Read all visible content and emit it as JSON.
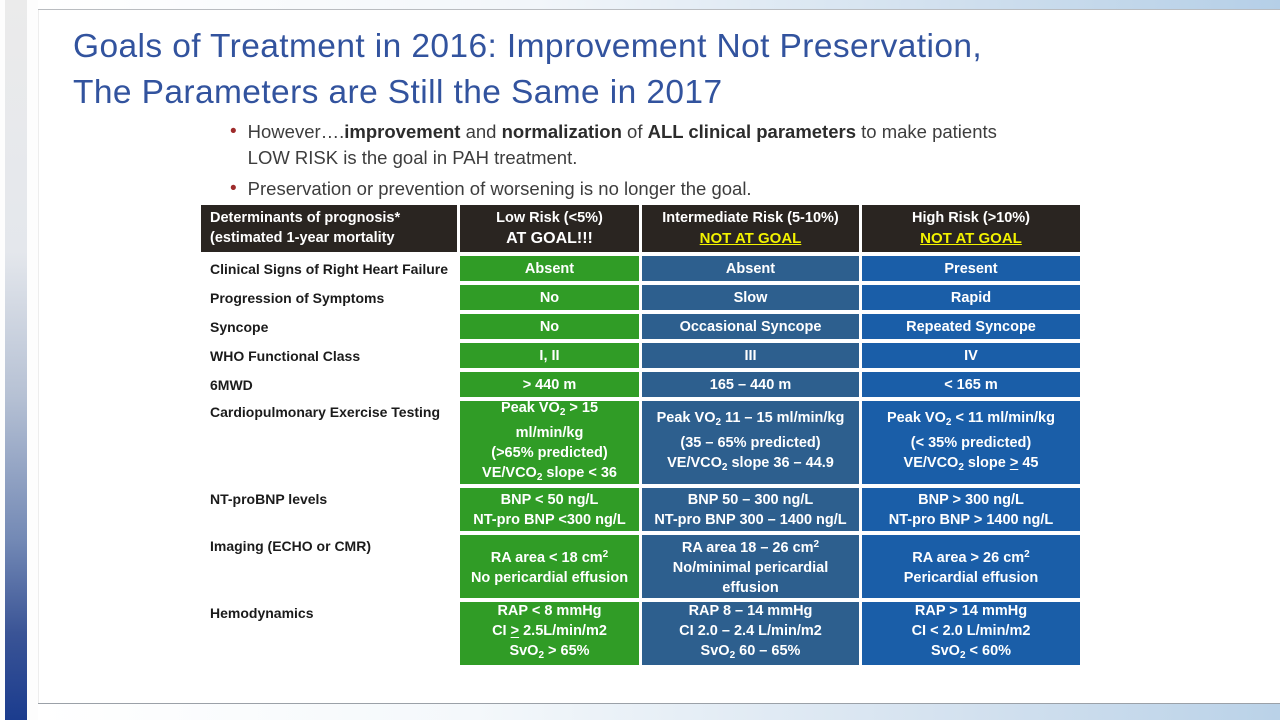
{
  "slide": {
    "title_line1": "Goals of Treatment in 2016: Improvement Not Preservation,",
    "title_line2": "The Parameters are Still the Same in 2017",
    "bullets": [
      {
        "segments": [
          {
            "t": "However…."
          },
          {
            "t": "improvement",
            "b": true
          },
          {
            "t": " and "
          },
          {
            "t": "normalization",
            "b": true
          },
          {
            "t": " of "
          },
          {
            "t": "ALL clinical parameters",
            "b": true
          },
          {
            "t": " to make patients LOW RISK is the goal in PAH treatment."
          }
        ]
      },
      {
        "segments": [
          {
            "t": "Preservation or prevention of worsening is no longer the goal."
          }
        ]
      }
    ]
  },
  "colors": {
    "title_blue": "#32539e",
    "header_bg": "#2a2521",
    "goal_yellow": "#f2f200",
    "low_green": "#309c26",
    "intermediate_blue": "#2d5f8e",
    "high_blue": "#1a5ea8",
    "bullet_red": "#9e2b2b",
    "rail_navy": "#1b3c8e"
  },
  "table": {
    "header": {
      "determinants_line1": "Determinants of prognosis*",
      "determinants_line2": "(estimated 1-year mortality",
      "low_risk": "Low Risk (<5%)",
      "low_status": "AT GOAL!!!",
      "intermediate_risk": "Intermediate Risk (5-10%)",
      "intermediate_status": "NOT AT GOAL",
      "high_risk": "High Risk (>10%)",
      "high_status": "NOT AT GOAL"
    },
    "rows": [
      {
        "label": "Clinical Signs of Right Heart Failure",
        "low": [
          [
            {
              "t": "Absent"
            }
          ]
        ],
        "intermediate": [
          [
            {
              "t": "Absent"
            }
          ]
        ],
        "high": [
          [
            {
              "t": "Present"
            }
          ]
        ]
      },
      {
        "label": "Progression of Symptoms",
        "low": [
          [
            {
              "t": "No"
            }
          ]
        ],
        "intermediate": [
          [
            {
              "t": "Slow"
            }
          ]
        ],
        "high": [
          [
            {
              "t": "Rapid"
            }
          ]
        ]
      },
      {
        "label": "Syncope",
        "low": [
          [
            {
              "t": "No"
            }
          ]
        ],
        "intermediate": [
          [
            {
              "t": "Occasional Syncope"
            }
          ]
        ],
        "high": [
          [
            {
              "t": "Repeated Syncope"
            }
          ]
        ]
      },
      {
        "label": "WHO Functional Class",
        "low": [
          [
            {
              "t": "I, II"
            }
          ]
        ],
        "intermediate": [
          [
            {
              "t": "III"
            }
          ]
        ],
        "high": [
          [
            {
              "t": "IV"
            }
          ]
        ]
      },
      {
        "label": "6MWD",
        "low": [
          [
            {
              "t": "> 440 m"
            }
          ]
        ],
        "intermediate": [
          [
            {
              "t": "165 – 440 m"
            }
          ]
        ],
        "high": [
          [
            {
              "t": "< 165 m"
            }
          ]
        ]
      },
      {
        "label": "Cardiopulmonary Exercise Testing",
        "low": [
          [
            {
              "t": "Peak VO"
            },
            {
              "t": "2",
              "sub": true
            },
            {
              "t": " > 15"
            }
          ],
          [
            {
              "t": "ml/min/kg"
            }
          ],
          [
            {
              "t": "(>65% predicted)"
            }
          ],
          [
            {
              "t": "VE/VCO"
            },
            {
              "t": "2",
              "sub": true
            },
            {
              "t": " slope < 36"
            }
          ]
        ],
        "intermediate": [
          [
            {
              "t": "Peak VO"
            },
            {
              "t": "2",
              "sub": true
            },
            {
              "t": " 11 – 15 ml/min/kg"
            }
          ],
          [
            {
              "t": "(35 – 65% predicted)"
            }
          ],
          [
            {
              "t": "VE/VCO"
            },
            {
              "t": "2",
              "sub": true
            },
            {
              "t": " slope 36 – 44.9"
            }
          ]
        ],
        "high": [
          [
            {
              "t": "Peak VO"
            },
            {
              "t": "2",
              "sub": true
            },
            {
              "t": " < 11 ml/min/kg"
            }
          ],
          [
            {
              "t": "(< 35% predicted)"
            }
          ],
          [
            {
              "t": "VE/VCO"
            },
            {
              "t": "2",
              "sub": true
            },
            {
              "t": " slope "
            },
            {
              "t": ">",
              "u": true
            },
            {
              "t": " 45"
            }
          ]
        ]
      },
      {
        "label": "NT-proBNP levels",
        "low": [
          [
            {
              "t": "BNP < 50 ng/L"
            }
          ],
          [
            {
              "t": "NT-pro BNP <300 ng/L"
            }
          ]
        ],
        "intermediate": [
          [
            {
              "t": "BNP 50 – 300 ng/L"
            }
          ],
          [
            {
              "t": "NT-pro BNP 300 – 1400 ng/L"
            }
          ]
        ],
        "high": [
          [
            {
              "t": "BNP > 300 ng/L"
            }
          ],
          [
            {
              "t": "NT-pro BNP > 1400 ng/L"
            }
          ]
        ]
      },
      {
        "label": "Imaging (ECHO or CMR)",
        "low": [
          [
            {
              "t": "RA area < 18 cm"
            },
            {
              "t": "2",
              "sup": true
            }
          ],
          [
            {
              "t": "No pericardial effusion"
            }
          ]
        ],
        "intermediate": [
          [
            {
              "t": "RA area 18 – 26 cm"
            },
            {
              "t": "2",
              "sup": true
            }
          ],
          [
            {
              "t": "No/minimal pericardial"
            }
          ],
          [
            {
              "t": "effusion"
            }
          ]
        ],
        "high": [
          [
            {
              "t": "RA area > 26 cm"
            },
            {
              "t": "2",
              "sup": true
            }
          ],
          [
            {
              "t": "Pericardial effusion"
            }
          ]
        ]
      },
      {
        "label": "Hemodynamics",
        "low": [
          [
            {
              "t": "RAP < 8 mmHg"
            }
          ],
          [
            {
              "t": "CI "
            },
            {
              "t": ">",
              "u": true
            },
            {
              "t": " 2.5L/min/m2"
            }
          ],
          [
            {
              "t": "SvO"
            },
            {
              "t": "2",
              "sub": true
            },
            {
              "t": " > 65%"
            }
          ]
        ],
        "intermediate": [
          [
            {
              "t": "RAP 8 – 14 mmHg"
            }
          ],
          [
            {
              "t": "CI 2.0 – 2.4 L/min/m2"
            }
          ],
          [
            {
              "t": "SvO"
            },
            {
              "t": "2",
              "sub": true
            },
            {
              "t": " 60 – 65%"
            }
          ]
        ],
        "high": [
          [
            {
              "t": "RAP > 14 mmHg"
            }
          ],
          [
            {
              "t": "CI < 2.0 L/min/m2"
            }
          ],
          [
            {
              "t": "SvO"
            },
            {
              "t": "2",
              "sub": true
            },
            {
              "t": " < 60%"
            }
          ]
        ]
      }
    ]
  }
}
